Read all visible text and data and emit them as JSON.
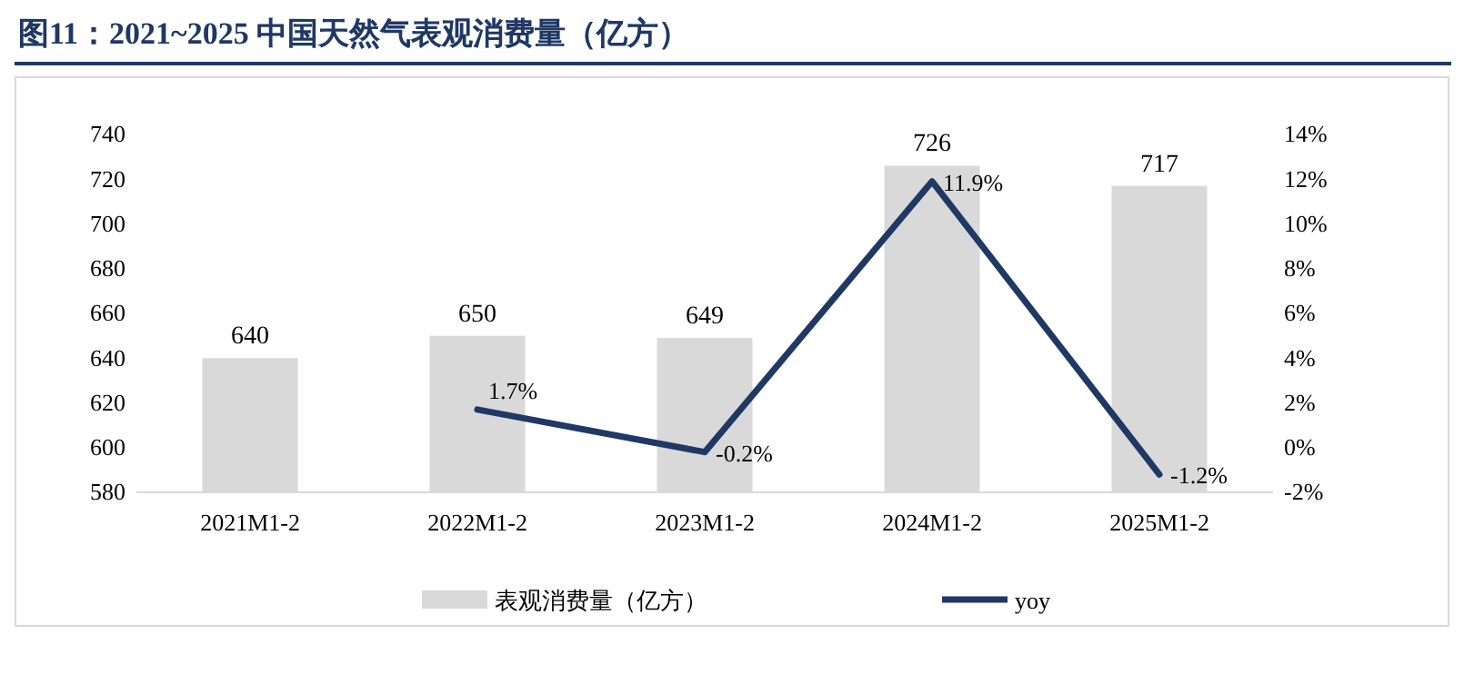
{
  "chart_data": {
    "type": "bar",
    "title": "图11：2021~2025 中国天然气表观消费量（亿方）",
    "categories": [
      "2021M1-2",
      "2022M1-2",
      "2023M1-2",
      "2024M1-2",
      "2025M1-2"
    ],
    "series": [
      {
        "name": "表观消费量（亿方）",
        "color": "#d9d9d9",
        "values": [
          640,
          650,
          649,
          726,
          717
        ],
        "value_labels": [
          "640",
          "650",
          "649",
          "726",
          "717"
        ]
      },
      {
        "name": "yoy",
        "type": "line",
        "axis": "y2",
        "color": "#1f3864",
        "values": [
          null,
          1.7,
          -0.2,
          11.9,
          -1.2
        ],
        "value_labels": [
          null,
          "1.7%",
          "-0.2%",
          "11.9%",
          "-1.2%"
        ]
      }
    ],
    "ylim": [
      580,
      740
    ],
    "yticks": [
      580,
      600,
      620,
      640,
      660,
      680,
      700,
      720,
      740
    ],
    "y2lim": [
      -2,
      14
    ],
    "y2ticks": [
      {
        "value": -2,
        "label": "-2%"
      },
      {
        "value": 0,
        "label": "0%"
      },
      {
        "value": 2,
        "label": "2%"
      },
      {
        "value": 4,
        "label": "4%"
      },
      {
        "value": 6,
        "label": "6%"
      },
      {
        "value": 8,
        "label": "8%"
      },
      {
        "value": 10,
        "label": "10%"
      },
      {
        "value": 12,
        "label": "12%"
      },
      {
        "value": 14,
        "label": "14%"
      }
    ],
    "legend": "bottom",
    "grid": false,
    "marker": "none",
    "line_style": "solid"
  }
}
